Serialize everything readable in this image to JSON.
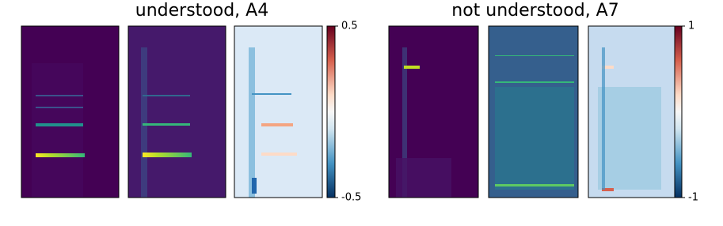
{
  "panels": [
    {
      "title": "understood, A4",
      "colorbar": {
        "lim": [
          -0.5,
          0.5
        ],
        "ticks": [
          -0.5,
          0.5
        ]
      }
    },
    {
      "title": "not understood, A7",
      "colorbar": {
        "lim": [
          -1,
          1
        ],
        "ticks": [
          -1,
          1
        ]
      }
    }
  ]
}
